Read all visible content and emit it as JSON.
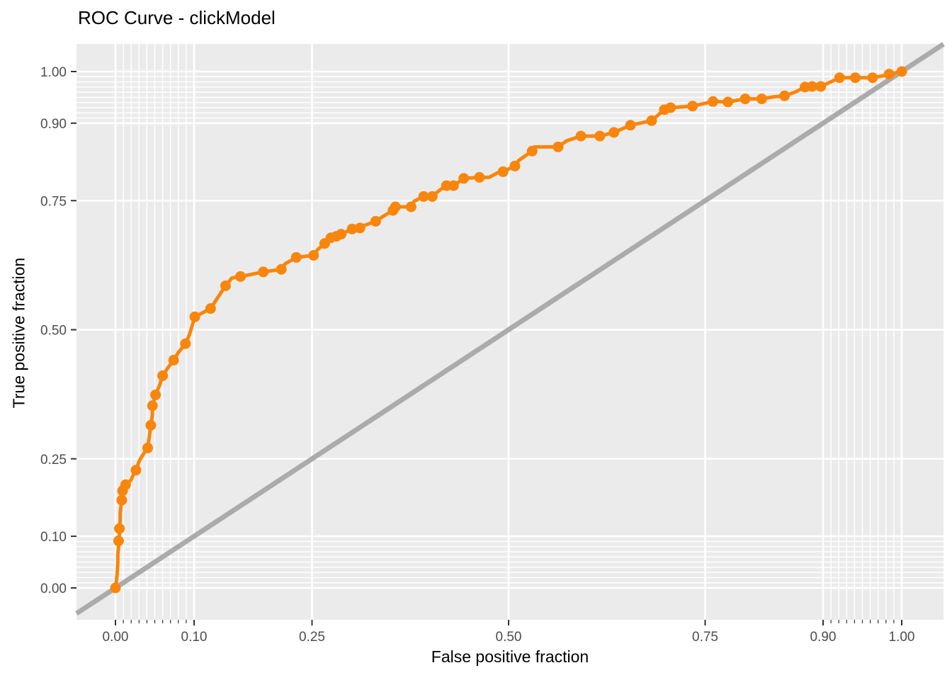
{
  "chart_data": {
    "type": "line",
    "title": "ROC Curve - clickModel",
    "xlabel": "False positive fraction",
    "ylabel": "True positive fraction",
    "xlim": [
      0,
      1
    ],
    "ylim": [
      0,
      1
    ],
    "grid": "major white on gray panel; minor gridlines only in [0,0.1] and [0.9,1]",
    "legend": "none",
    "x_ticks": [
      {
        "v": 0.0,
        "label": "0.00"
      },
      {
        "v": 0.1,
        "label": "0.10"
      },
      {
        "v": 0.25,
        "label": "0.25"
      },
      {
        "v": 0.5,
        "label": "0.50"
      },
      {
        "v": 0.75,
        "label": "0.75"
      },
      {
        "v": 0.9,
        "label": "0.90"
      },
      {
        "v": 1.0,
        "label": "1.00"
      }
    ],
    "y_ticks": [
      {
        "v": 0.0,
        "label": "0.00"
      },
      {
        "v": 0.1,
        "label": "0.10"
      },
      {
        "v": 0.25,
        "label": "0.25"
      },
      {
        "v": 0.5,
        "label": "0.50"
      },
      {
        "v": 0.75,
        "label": "0.75"
      },
      {
        "v": 0.9,
        "label": "0.90"
      },
      {
        "v": 1.0,
        "label": "1.00"
      }
    ],
    "minor_breaks": [
      0.01,
      0.02,
      0.03,
      0.04,
      0.05,
      0.06,
      0.07,
      0.08,
      0.09,
      0.91,
      0.92,
      0.93,
      0.94,
      0.95,
      0.96,
      0.97,
      0.98,
      0.99
    ],
    "colors": {
      "panel_background": "#EBEBEB",
      "gridline": "#FFFFFF",
      "tick": "#333333",
      "tick_label": "#4D4D4D",
      "title_text": "#000000",
      "roc_curve": "#F8860D",
      "chance_line": "#ABABAB"
    },
    "series": [
      {
        "name": "ROC curve (clickModel)",
        "color": "#F8860D",
        "marker": "circle",
        "points": [
          [
            0.0,
            0.0,
            1
          ],
          [
            0.001,
            0.01,
            0
          ],
          [
            0.002,
            0.024,
            0
          ],
          [
            0.003,
            0.048,
            0
          ],
          [
            0.003,
            0.065,
            0
          ],
          [
            0.004,
            0.08,
            0
          ],
          [
            0.004,
            0.091,
            1
          ],
          [
            0.005,
            0.103,
            0
          ],
          [
            0.005,
            0.115,
            1
          ],
          [
            0.006,
            0.13,
            0
          ],
          [
            0.006,
            0.145,
            0
          ],
          [
            0.007,
            0.158,
            0
          ],
          [
            0.008,
            0.17,
            1
          ],
          [
            0.009,
            0.188,
            1
          ],
          [
            0.013,
            0.2,
            1
          ],
          [
            0.02,
            0.209,
            0
          ],
          [
            0.023,
            0.22,
            0
          ],
          [
            0.026,
            0.228,
            1
          ],
          [
            0.03,
            0.245,
            0
          ],
          [
            0.035,
            0.258,
            0
          ],
          [
            0.041,
            0.271,
            1
          ],
          [
            0.043,
            0.292,
            0
          ],
          [
            0.045,
            0.315,
            1
          ],
          [
            0.047,
            0.335,
            0
          ],
          [
            0.047,
            0.353,
            1
          ],
          [
            0.051,
            0.374,
            1
          ],
          [
            0.056,
            0.392,
            0
          ],
          [
            0.06,
            0.411,
            1
          ],
          [
            0.067,
            0.427,
            0
          ],
          [
            0.074,
            0.441,
            1
          ],
          [
            0.08,
            0.456,
            0
          ],
          [
            0.089,
            0.473,
            1
          ],
          [
            0.094,
            0.49,
            0
          ],
          [
            0.101,
            0.525,
            1
          ],
          [
            0.121,
            0.541,
            1
          ],
          [
            0.13,
            0.562,
            0
          ],
          [
            0.14,
            0.585,
            1
          ],
          [
            0.148,
            0.6,
            0
          ],
          [
            0.159,
            0.603,
            1
          ],
          [
            0.188,
            0.612,
            1
          ],
          [
            0.211,
            0.617,
            1
          ],
          [
            0.216,
            0.628,
            0
          ],
          [
            0.23,
            0.64,
            1
          ],
          [
            0.252,
            0.644,
            1
          ],
          [
            0.257,
            0.655,
            0
          ],
          [
            0.266,
            0.667,
            1
          ],
          [
            0.274,
            0.678,
            1
          ],
          [
            0.281,
            0.681,
            1
          ],
          [
            0.287,
            0.685,
            1
          ],
          [
            0.301,
            0.695,
            1
          ],
          [
            0.311,
            0.697,
            1
          ],
          [
            0.313,
            0.7,
            0
          ],
          [
            0.331,
            0.71,
            1
          ],
          [
            0.342,
            0.721,
            0
          ],
          [
            0.353,
            0.731,
            1
          ],
          [
            0.356,
            0.738,
            1
          ],
          [
            0.376,
            0.738,
            1
          ],
          [
            0.38,
            0.749,
            0
          ],
          [
            0.392,
            0.758,
            1
          ],
          [
            0.403,
            0.758,
            1
          ],
          [
            0.412,
            0.77,
            0
          ],
          [
            0.421,
            0.779,
            1
          ],
          [
            0.43,
            0.779,
            1
          ],
          [
            0.443,
            0.793,
            1
          ],
          [
            0.463,
            0.795,
            1
          ],
          [
            0.475,
            0.795,
            0
          ],
          [
            0.486,
            0.804,
            0
          ],
          [
            0.493,
            0.806,
            1
          ],
          [
            0.508,
            0.817,
            1
          ],
          [
            0.513,
            0.828,
            0
          ],
          [
            0.53,
            0.846,
            1
          ],
          [
            0.533,
            0.854,
            0
          ],
          [
            0.563,
            0.854,
            1
          ],
          [
            0.574,
            0.866,
            0
          ],
          [
            0.592,
            0.875,
            1
          ],
          [
            0.616,
            0.875,
            1
          ],
          [
            0.634,
            0.882,
            1
          ],
          [
            0.655,
            0.896,
            1
          ],
          [
            0.682,
            0.905,
            1
          ],
          [
            0.698,
            0.926,
            1
          ],
          [
            0.706,
            0.93,
            1
          ],
          [
            0.734,
            0.933,
            1
          ],
          [
            0.76,
            0.942,
            1
          ],
          [
            0.779,
            0.941,
            1
          ],
          [
            0.801,
            0.947,
            1
          ],
          [
            0.822,
            0.947,
            1
          ],
          [
            0.837,
            0.951,
            0
          ],
          [
            0.851,
            0.953,
            1
          ],
          [
            0.864,
            0.96,
            0
          ],
          [
            0.877,
            0.97,
            1
          ],
          [
            0.886,
            0.971,
            1
          ],
          [
            0.897,
            0.971,
            1
          ],
          [
            0.907,
            0.978,
            0
          ],
          [
            0.921,
            0.988,
            1
          ],
          [
            0.941,
            0.988,
            1
          ],
          [
            0.963,
            0.988,
            1
          ],
          [
            0.977,
            0.992,
            0
          ],
          [
            0.984,
            0.995,
            1
          ],
          [
            1.0,
            1.0,
            1
          ]
        ]
      },
      {
        "name": "Chance diagonal",
        "color": "#ABABAB",
        "slope": 1,
        "intercept": 0
      }
    ]
  }
}
